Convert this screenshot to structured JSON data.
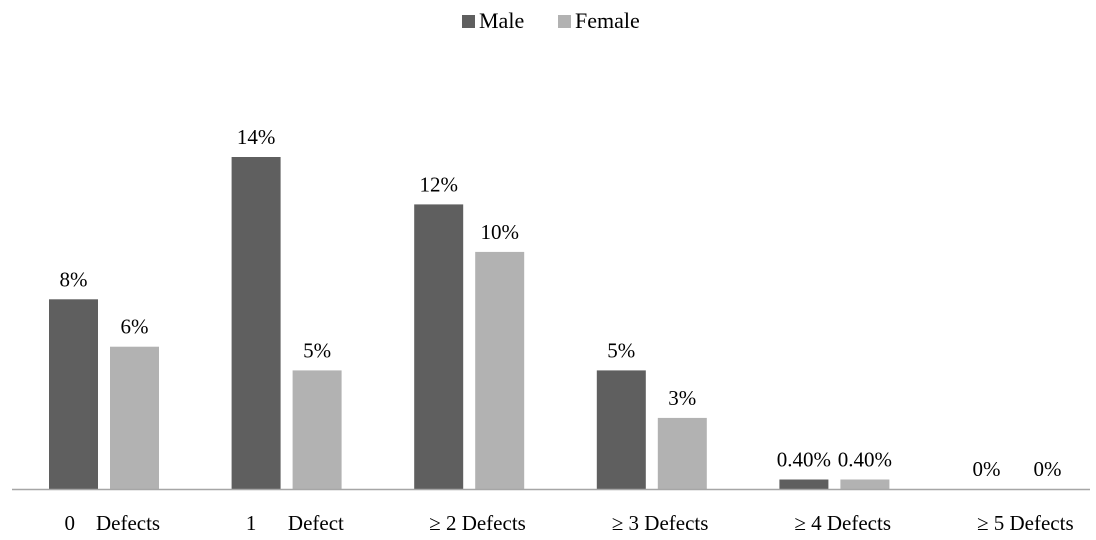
{
  "chart_data": {
    "type": "bar",
    "categories": [
      "0    Defects",
      "1      Defect",
      "≥ 2 Defects",
      "≥ 3 Defects",
      "≥ 4 Defects",
      "≥ 5 Defects"
    ],
    "series": [
      {
        "name": "Male",
        "color": "#5f5f5f",
        "values": [
          8,
          14,
          12,
          5,
          0.4,
          0
        ],
        "labels": [
          "8%",
          "14%",
          "12%",
          "5%",
          "0.40%",
          "0%"
        ]
      },
      {
        "name": "Female",
        "color": "#b2b2b2",
        "values": [
          6,
          5,
          10,
          3,
          0.4,
          0
        ],
        "labels": [
          "6%",
          "5%",
          "10%",
          "3%",
          "0.40%",
          "0%"
        ]
      }
    ],
    "legend_position": "top",
    "grid": false,
    "y_axis_visible": false,
    "ylim": [
      0,
      16
    ],
    "axis_color": "#a6a6a6"
  }
}
